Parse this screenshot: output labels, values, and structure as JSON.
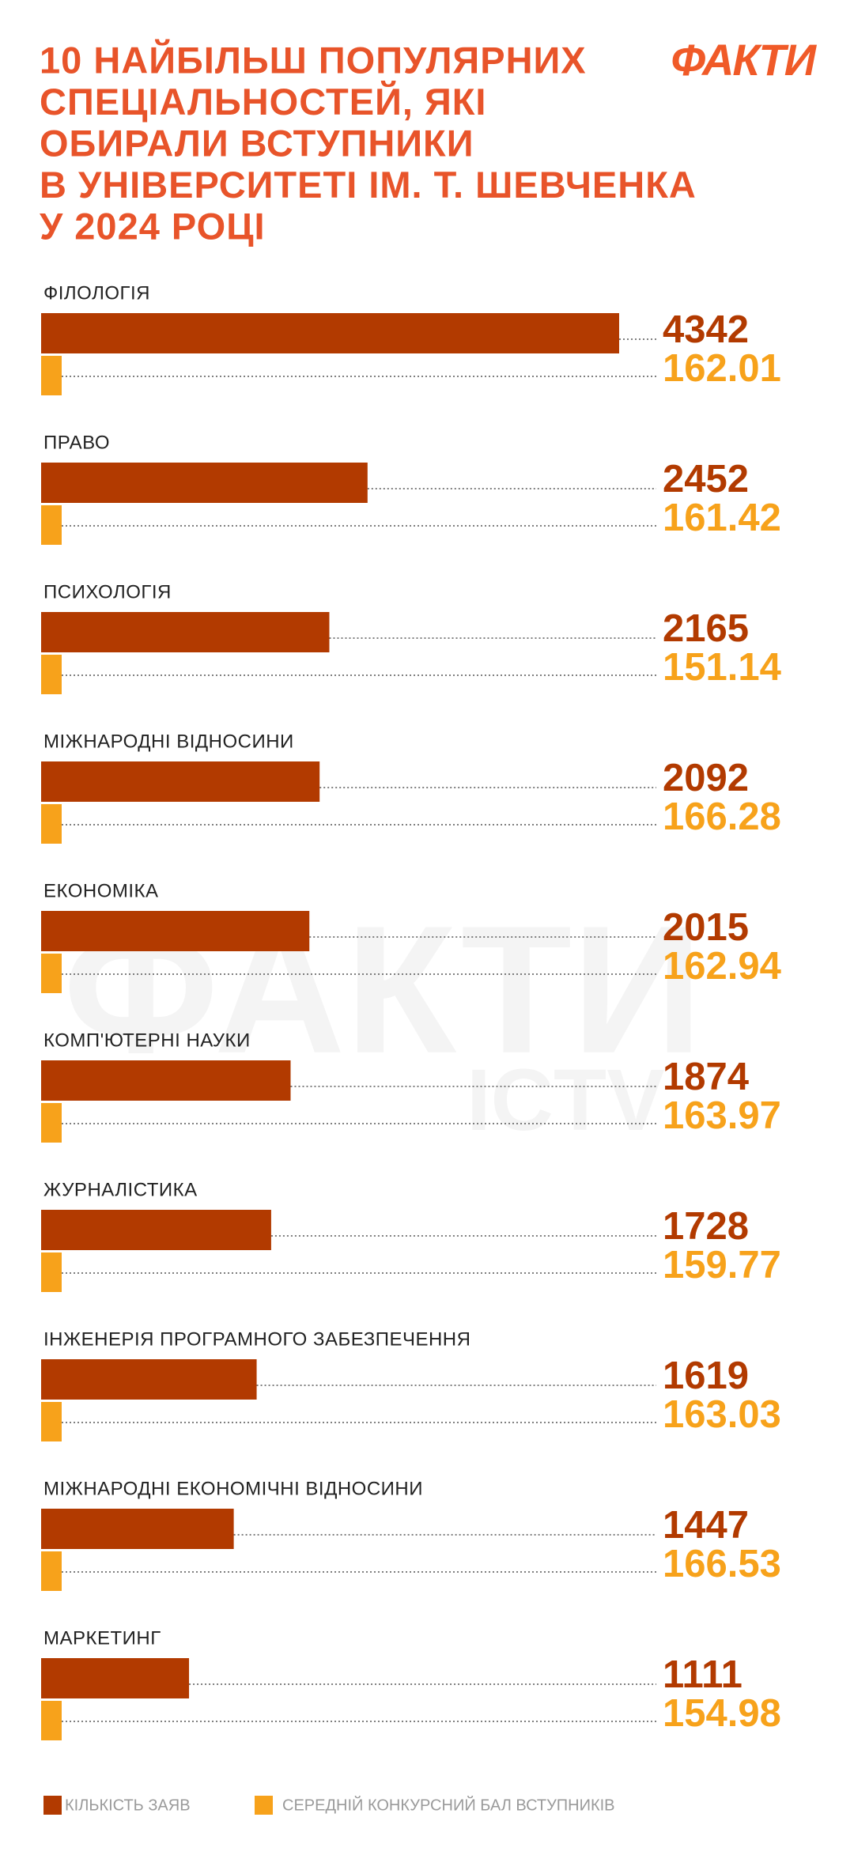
{
  "logo": "ФАКТИ",
  "watermark": [
    "ФАКТИ",
    "ICTV"
  ],
  "chart_data": {
    "type": "bar",
    "title": [
      "10 НАЙБІЛЬШ ПОПУЛЯРНИХ",
      "СПЕЦІАЛЬНОСТЕЙ, ЯКІ",
      "ОБИРАЛИ ВСТУПНИКИ",
      "В УНІВЕРСИТЕТІ ІМ. Т. ШЕВЧЕНКА",
      "У 2024 РОЦІ"
    ],
    "categories": [
      "ФІЛОЛОГІЯ",
      "ПРАВО",
      "ПСИХОЛОГІЯ",
      "МІЖНАРОДНІ ВІДНОСИНИ",
      "ЕКОНОМІКА",
      "КОМП'ЮТЕРНІ НАУКИ",
      "ЖУРНАЛІСТИКА",
      "ІНЖЕНЕРІЯ ПРОГРАМНОГО ЗАБЕЗПЕЧЕННЯ",
      "МІЖНАРОДНІ ЕКОНОМІЧНІ ВІДНОСИНИ",
      "МАРКЕТИНГ"
    ],
    "series": [
      {
        "name": "КІЛЬКІСТЬ ЗАЯВ",
        "color": "#b23a00",
        "values": [
          4342,
          2452,
          2165,
          2092,
          2015,
          1874,
          1728,
          1619,
          1447,
          1111
        ]
      },
      {
        "name": "СЕРЕДНІЙ КОНКУРСНИЙ БАЛ ВСТУПНИКІВ",
        "color": "#f7a21b",
        "values": [
          162.01,
          161.42,
          151.14,
          166.28,
          162.94,
          163.97,
          159.77,
          163.03,
          166.53,
          154.98
        ]
      }
    ]
  }
}
